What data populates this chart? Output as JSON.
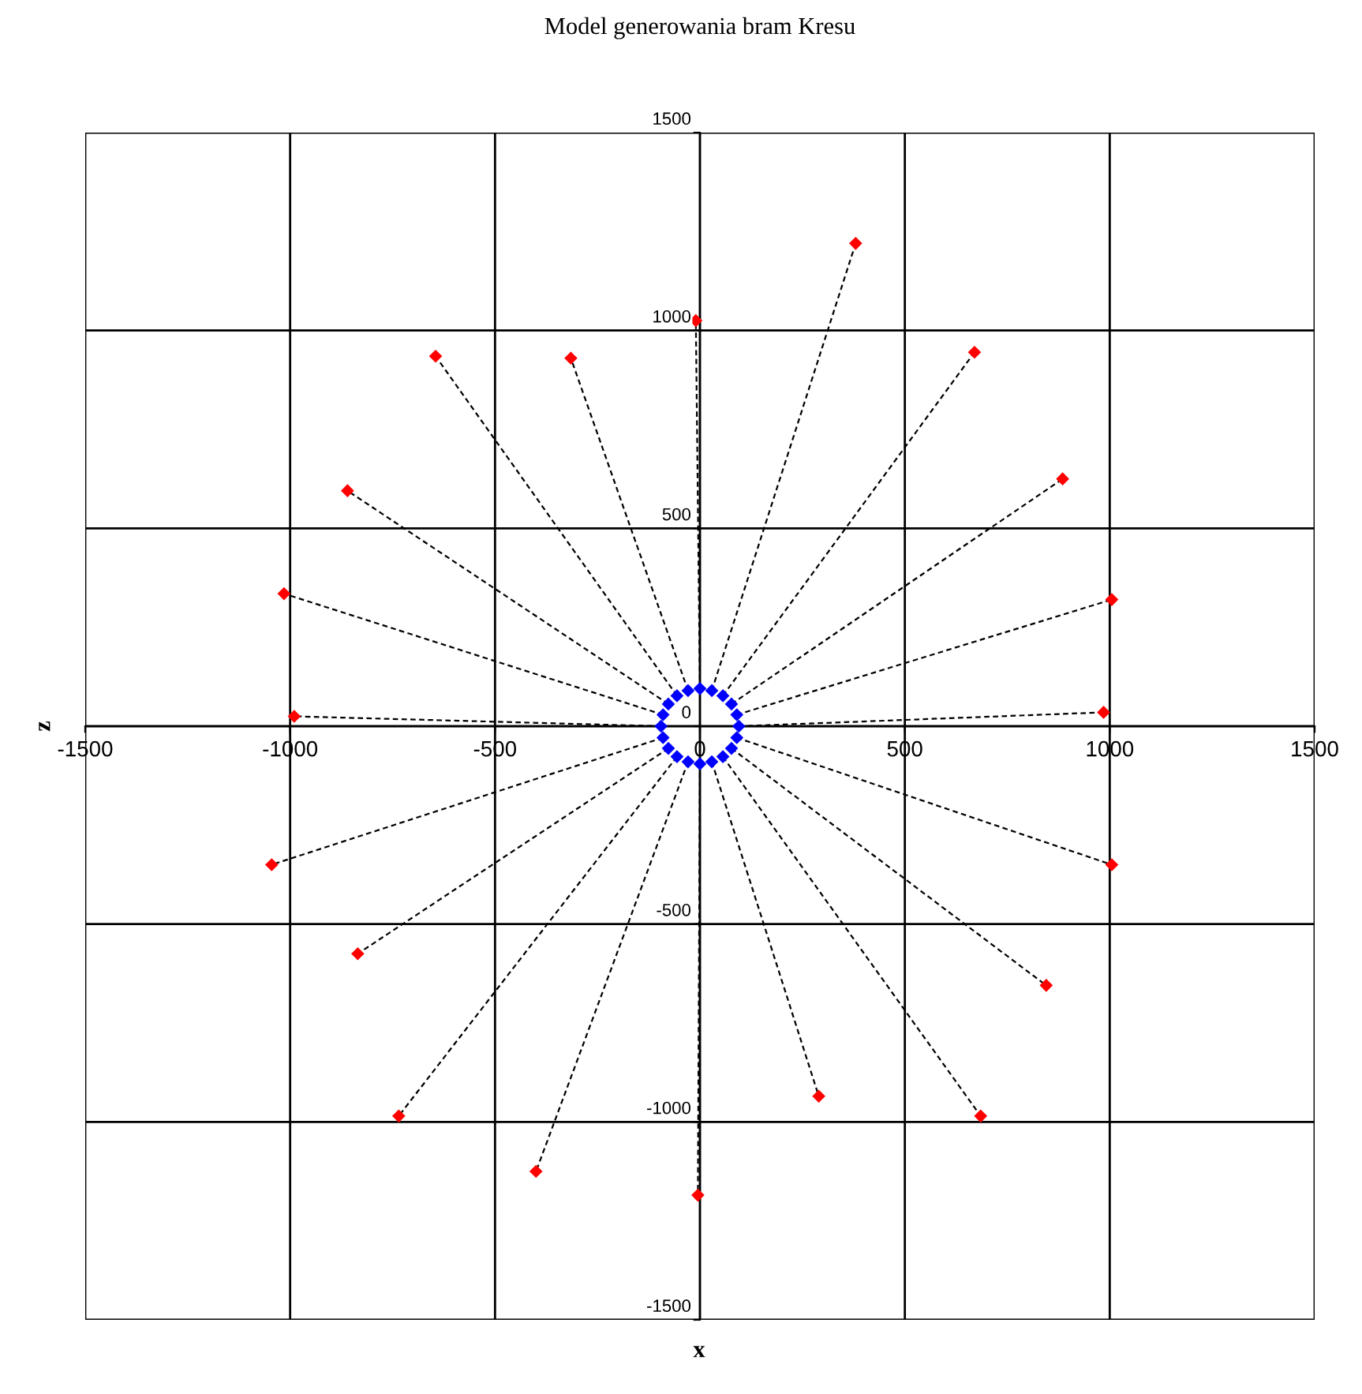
{
  "chart_data": {
    "type": "scatter",
    "title": "Model generowania bram Kresu",
    "xlabel": "x",
    "ylabel": "z",
    "xlim": [
      -1500,
      1500
    ],
    "ylim": [
      -1500,
      1500
    ],
    "xticks": [
      -1500,
      -1000,
      -500,
      0,
      500,
      1000,
      1500
    ],
    "yticks": [
      -1500,
      -1000,
      -500,
      0,
      500,
      1000,
      1500
    ],
    "grid": true,
    "marker": "diamond",
    "series": [
      {
        "type": "line",
        "color": "#000000",
        "line_style": "dashed",
        "marker": "none",
        "x": [
          0,
          -10
        ],
        "values": [
          95,
          1025
        ]
      },
      {
        "type": "line",
        "color": "#000000",
        "line_style": "dashed",
        "marker": "none",
        "x": [
          29,
          380
        ],
        "values": [
          90,
          1220
        ]
      },
      {
        "type": "line",
        "color": "#000000",
        "line_style": "dashed",
        "marker": "none",
        "x": [
          56,
          670
        ],
        "values": [
          77,
          945
        ]
      },
      {
        "type": "line",
        "color": "#000000",
        "line_style": "dashed",
        "marker": "none",
        "x": [
          77,
          885
        ],
        "values": [
          56,
          625
        ]
      },
      {
        "type": "line",
        "color": "#000000",
        "line_style": "dashed",
        "marker": "none",
        "x": [
          90,
          1005
        ],
        "values": [
          29,
          320
        ]
      },
      {
        "type": "line",
        "color": "#000000",
        "line_style": "dashed",
        "marker": "none",
        "x": [
          95,
          985
        ],
        "values": [
          0,
          35
        ]
      },
      {
        "type": "line",
        "color": "#000000",
        "line_style": "dashed",
        "marker": "none",
        "x": [
          90,
          1005
        ],
        "values": [
          -29,
          -350
        ]
      },
      {
        "type": "line",
        "color": "#000000",
        "line_style": "dashed",
        "marker": "none",
        "x": [
          77,
          845
        ],
        "values": [
          -56,
          -655
        ]
      },
      {
        "type": "line",
        "color": "#000000",
        "line_style": "dashed",
        "marker": "none",
        "x": [
          56,
          685
        ],
        "values": [
          -77,
          -985
        ]
      },
      {
        "type": "line",
        "color": "#000000",
        "line_style": "dashed",
        "marker": "none",
        "x": [
          29,
          290
        ],
        "values": [
          -90,
          -935
        ]
      },
      {
        "type": "line",
        "color": "#000000",
        "line_style": "dashed",
        "marker": "none",
        "x": [
          0,
          -5
        ],
        "values": [
          -95,
          -1185
        ]
      },
      {
        "type": "line",
        "color": "#000000",
        "line_style": "dashed",
        "marker": "none",
        "x": [
          -29,
          -400
        ],
        "values": [
          -90,
          -1125
        ]
      },
      {
        "type": "line",
        "color": "#000000",
        "line_style": "dashed",
        "marker": "none",
        "x": [
          -56,
          -735
        ],
        "values": [
          -77,
          -985
        ]
      },
      {
        "type": "line",
        "color": "#000000",
        "line_style": "dashed",
        "marker": "none",
        "x": [
          -77,
          -835
        ],
        "values": [
          -56,
          -575
        ]
      },
      {
        "type": "line",
        "color": "#000000",
        "line_style": "dashed",
        "marker": "none",
        "x": [
          -90,
          -1045
        ],
        "values": [
          -29,
          -350
        ]
      },
      {
        "type": "line",
        "color": "#000000",
        "line_style": "dashed",
        "marker": "none",
        "x": [
          -95,
          -990
        ],
        "values": [
          0,
          25
        ]
      },
      {
        "type": "line",
        "color": "#000000",
        "line_style": "dashed",
        "marker": "none",
        "x": [
          -90,
          -1015
        ],
        "values": [
          29,
          335
        ]
      },
      {
        "type": "line",
        "color": "#000000",
        "line_style": "dashed",
        "marker": "none",
        "x": [
          -77,
          -860
        ],
        "values": [
          56,
          595
        ]
      },
      {
        "type": "line",
        "color": "#000000",
        "line_style": "dashed",
        "marker": "none",
        "x": [
          -56,
          -645
        ],
        "values": [
          77,
          935
        ]
      },
      {
        "type": "line",
        "color": "#000000",
        "line_style": "dashed",
        "marker": "none",
        "x": [
          -29,
          -315
        ],
        "values": [
          90,
          930
        ]
      },
      {
        "type": "scatter",
        "color": "#0000ff",
        "x": [
          0,
          29,
          56,
          77,
          90,
          95,
          90,
          77,
          56,
          29,
          0,
          -29,
          -56,
          -77,
          -90,
          -95,
          -90,
          -77,
          -56,
          -29
        ],
        "values": [
          95,
          90,
          77,
          56,
          29,
          0,
          -29,
          -56,
          -77,
          -90,
          -95,
          -90,
          -77,
          -56,
          -29,
          0,
          29,
          56,
          77,
          90
        ]
      },
      {
        "type": "scatter",
        "color": "#ff0000",
        "x": [
          -10,
          380,
          670,
          885,
          1005,
          985,
          1005,
          845,
          685,
          290,
          -5,
          -400,
          -735,
          -835,
          -1045,
          -990,
          -1015,
          -860,
          -645,
          -315
        ],
        "values": [
          1025,
          1220,
          945,
          625,
          320,
          35,
          -350,
          -655,
          -985,
          -935,
          -1185,
          -1125,
          -985,
          -575,
          -350,
          25,
          335,
          595,
          935,
          930
        ]
      }
    ]
  }
}
